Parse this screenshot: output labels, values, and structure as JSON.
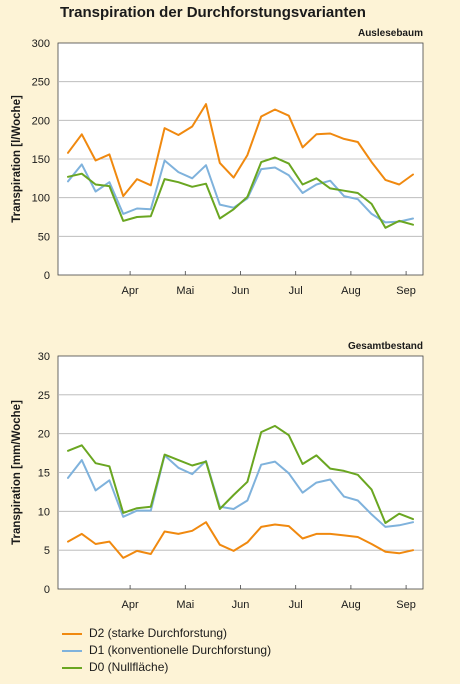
{
  "title": "Transpiration der Durchforstungsvarianten",
  "colors": {
    "D2": "#f0890f",
    "D1": "#7fb2dc",
    "D0": "#6aa621",
    "grid": "#b4b4b4",
    "plot_bg": "#ffffff"
  },
  "legend": [
    {
      "key": "D2",
      "label": "D2 (starke Durchforstung)"
    },
    {
      "key": "D1",
      "label": "D1 (konventionelle Durchforstung)"
    },
    {
      "key": "D0",
      "label": "D0 (Nullfläche)"
    }
  ],
  "chart_data": [
    {
      "type": "line",
      "title": "Auslesebaum",
      "ylabel": "Transpiration [l/Woche]",
      "ylim": [
        0,
        300
      ],
      "yticks": [
        0,
        50,
        100,
        150,
        200,
        250,
        300
      ],
      "xlim": [
        0,
        25
      ],
      "month_labels": [
        "Apr",
        "Mai",
        "Jun",
        "Jul",
        "Aug",
        "Sep"
      ],
      "month_ticks": [
        4.5,
        8.5,
        12.5,
        16.5,
        20.5,
        24.5
      ],
      "grid": true,
      "series": [
        {
          "key": "D2",
          "name": "D2",
          "values": [
            158,
            182,
            148,
            156,
            102,
            124,
            116,
            190,
            181,
            192,
            221,
            145,
            126,
            155,
            205,
            214,
            206,
            165,
            182,
            183,
            176,
            172,
            146,
            123,
            117,
            130
          ]
        },
        {
          "key": "D1",
          "name": "D1",
          "values": [
            121,
            143,
            108,
            120,
            79,
            86,
            85,
            148,
            133,
            125,
            142,
            91,
            87,
            99,
            137,
            139,
            129,
            106,
            117,
            122,
            102,
            98,
            79,
            68,
            69,
            73
          ]
        },
        {
          "key": "D0",
          "name": "D0",
          "values": [
            127,
            131,
            117,
            115,
            70,
            75,
            76,
            124,
            120,
            114,
            118,
            73,
            85,
            101,
            146,
            152,
            144,
            117,
            125,
            112,
            109,
            106,
            92,
            61,
            70,
            65
          ]
        }
      ]
    },
    {
      "type": "line",
      "title": "Gesamtbestand",
      "ylabel": "Transpiration [mm/Woche]",
      "ylim": [
        0,
        30
      ],
      "yticks": [
        0,
        5,
        10,
        15,
        20,
        25,
        30
      ],
      "xlim": [
        0,
        25
      ],
      "month_labels": [
        "Apr",
        "Mai",
        "Jun",
        "Jul",
        "Aug",
        "Sep"
      ],
      "month_ticks": [
        4.5,
        8.5,
        12.5,
        16.5,
        20.5,
        24.5
      ],
      "grid": true,
      "series": [
        {
          "key": "D2",
          "name": "D2",
          "values": [
            6.1,
            7.1,
            5.8,
            6.1,
            4.0,
            4.9,
            4.5,
            7.4,
            7.1,
            7.5,
            8.6,
            5.7,
            4.9,
            6.0,
            8.0,
            8.3,
            8.1,
            6.5,
            7.1,
            7.1,
            6.9,
            6.7,
            5.8,
            4.8,
            4.6,
            5.0
          ]
        },
        {
          "key": "D1",
          "name": "D1",
          "values": [
            14.3,
            16.6,
            12.7,
            14.0,
            9.3,
            10.1,
            10.1,
            17.2,
            15.6,
            14.8,
            16.5,
            10.6,
            10.3,
            11.4,
            16.0,
            16.4,
            14.9,
            12.4,
            13.7,
            14.1,
            11.9,
            11.4,
            9.6,
            8.0,
            8.2,
            8.6
          ]
        },
        {
          "key": "D0",
          "name": "D0",
          "values": [
            17.8,
            18.5,
            16.2,
            15.8,
            9.8,
            10.4,
            10.6,
            17.3,
            16.6,
            15.9,
            16.4,
            10.3,
            12.1,
            13.8,
            20.2,
            21.0,
            19.8,
            16.1,
            17.2,
            15.5,
            15.2,
            14.7,
            12.8,
            8.5,
            9.7,
            9.0
          ]
        }
      ]
    }
  ]
}
